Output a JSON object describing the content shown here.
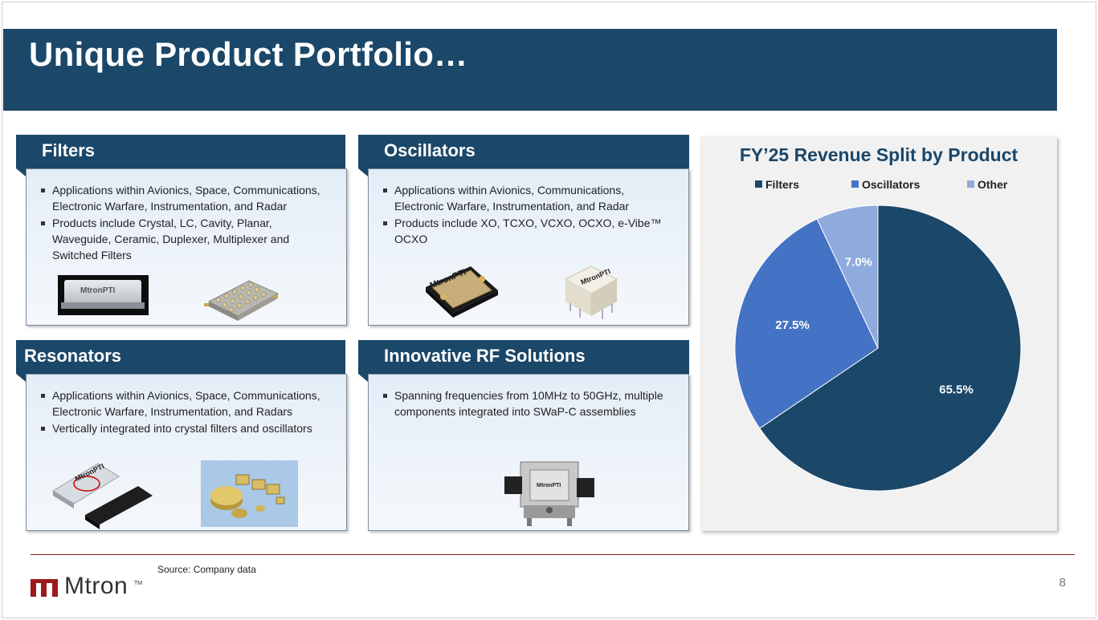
{
  "slide": {
    "title": "Unique Product Portfolio…",
    "page_number": "8",
    "source": "Source: Company data",
    "logo_text": "Mtron",
    "logo_tm": "TM"
  },
  "cards": {
    "filters": {
      "title": "Filters",
      "bullets": [
        "Applications within Avionics, Space, Communications, Electronic Warfare, Instrumentation, and Radar",
        "Products include Crystal, LC, Cavity, Planar, Waveguide, Ceramic, Duplexer, Multiplexer and Switched Filters"
      ]
    },
    "oscillators": {
      "title": "Oscillators",
      "bullets": [
        "Applications within Avionics, Communications, Electronic Warfare, Instrumentation, and Radar",
        "Products include XO, TCXO, VCXO, OCXO, e-Vibe™ OCXO"
      ]
    },
    "resonators": {
      "title": "Resonators",
      "bullets": [
        "Applications within Avionics, Space, Communications, Electronic Warfare, Instrumentation, and Radars",
        "Vertically integrated into crystal filters and oscillators"
      ]
    },
    "rf_solutions": {
      "title": "Innovative RF Solutions",
      "bullets": [
        "Spanning frequencies from 10MHz to 50GHz, multiple components integrated into SWaP-C assemblies"
      ]
    }
  },
  "product_labels": {
    "filter_brand": "MtronPTI",
    "osc_brand_1": "MtronPTI",
    "osc_brand_2": "MtronPTI",
    "res_brand": "MtronPTI",
    "rf_brand": "MtronPTI"
  },
  "chart_data": {
    "type": "pie",
    "title": "FY’25 Revenue Split by Product",
    "categories": [
      "Filters",
      "Oscillators",
      "Other"
    ],
    "values": [
      65.5,
      27.5,
      7.0
    ],
    "labels": [
      "65.5%",
      "27.5%",
      "7.0%"
    ],
    "colors": [
      "#1b4769",
      "#4472c4",
      "#8faadc"
    ],
    "legend_position": "top"
  },
  "colors": {
    "primary": "#1b4769",
    "accent_line": "#8b1a1a"
  }
}
